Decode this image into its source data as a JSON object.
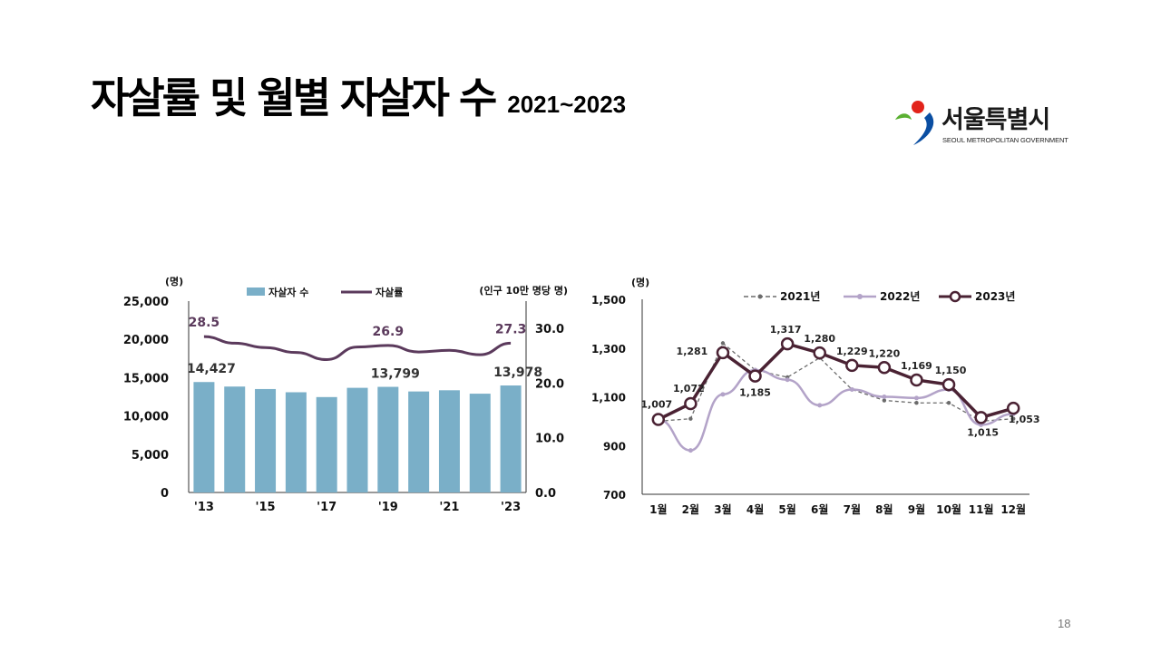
{
  "slide": {
    "title": "자살률 및 월별 자살자 수",
    "subtitle": "2021~2023",
    "page_number": "18"
  },
  "logo": {
    "name": "서울특별시",
    "english": "SEOUL METROPOLITAN GOVERNMENT",
    "icon": "seoul-logo-icon",
    "colors": {
      "red": "#e2231a",
      "blue": "#0a4ea2",
      "green": "#5ab031"
    }
  },
  "chart_data": [
    {
      "type": "bar+line",
      "title": "",
      "unit_left": "(명)",
      "unit_right": "(인구 10만 명당 명)",
      "legend": [
        "자살자 수",
        "자살률"
      ],
      "x": [
        "2013",
        "2014",
        "2015",
        "2016",
        "2017",
        "2018",
        "2019",
        "2020",
        "2021",
        "2022",
        "2023"
      ],
      "xtick_labels": [
        "'13",
        "'15",
        "'17",
        "'19",
        "'21",
        "'23"
      ],
      "xtick_years": [
        "2013",
        "2015",
        "2017",
        "2019",
        "2021",
        "2023"
      ],
      "bar_series": {
        "name": "자살자 수",
        "values": [
          14427,
          13836,
          13513,
          13092,
          12463,
          13670,
          13799,
          13195,
          13352,
          12906,
          13978
        ]
      },
      "line_series": {
        "name": "자살률",
        "values": [
          28.5,
          27.3,
          26.5,
          25.6,
          24.3,
          26.6,
          26.9,
          25.7,
          26.0,
          25.2,
          27.3
        ]
      },
      "bar_labels": [
        {
          "index": 0,
          "text": "14,427"
        },
        {
          "index": 6,
          "text": "13,799"
        },
        {
          "index": 10,
          "text": "13,978"
        }
      ],
      "line_labels": [
        {
          "index": 0,
          "text": "28.5"
        },
        {
          "index": 6,
          "text": "26.9"
        },
        {
          "index": 10,
          "text": "27.3"
        }
      ],
      "ylim_left": [
        0,
        25000
      ],
      "yticks_left": [
        "0",
        "5,000",
        "10,000",
        "15,000",
        "20,000",
        "25,000"
      ],
      "ylim_right": [
        0,
        35
      ],
      "yticks_right": [
        "0.0",
        "10.0",
        "20.0",
        "30.0"
      ],
      "colors": {
        "bar": "#7aafc8",
        "line": "#5b3a5c"
      }
    },
    {
      "type": "line",
      "unit": "(명)",
      "categories": [
        "1월",
        "2월",
        "3월",
        "4월",
        "5월",
        "6월",
        "7월",
        "8월",
        "9월",
        "10월",
        "11월",
        "12월"
      ],
      "series": [
        {
          "name": "2021년",
          "values": [
            1000,
            1010,
            1320,
            1210,
            1180,
            1260,
            1130,
            1085,
            1075,
            1075,
            1000,
            1010
          ],
          "color": "#6b6b6b",
          "style": "dashed"
        },
        {
          "name": "2022년",
          "values": [
            1007,
            880,
            1110,
            1210,
            1170,
            1065,
            1130,
            1100,
            1095,
            1130,
            985,
            1030
          ],
          "color": "#b3a3c8",
          "style": "solid"
        },
        {
          "name": "2023년",
          "values": [
            1007,
            1072,
            1281,
            1185,
            1317,
            1280,
            1229,
            1220,
            1169,
            1150,
            1015,
            1053
          ],
          "color": "#4a2233",
          "style": "solid-marker"
        }
      ],
      "labels": [
        {
          "index": 0,
          "text": "1,007"
        },
        {
          "index": 1,
          "text": "1,072"
        },
        {
          "index": 2,
          "text": "1,281"
        },
        {
          "index": 3,
          "text": "1,185"
        },
        {
          "index": 4,
          "text": "1,317"
        },
        {
          "index": 5,
          "text": "1,280"
        },
        {
          "index": 6,
          "text": "1,229"
        },
        {
          "index": 7,
          "text": "1,220"
        },
        {
          "index": 8,
          "text": "1,169"
        },
        {
          "index": 9,
          "text": "1,150"
        },
        {
          "index": 10,
          "text": "1,015"
        },
        {
          "index": 11,
          "text": "1,053"
        }
      ],
      "ylim": [
        700,
        1500
      ],
      "yticks": [
        "700",
        "900",
        "1,100",
        "1,300",
        "1,500"
      ]
    }
  ]
}
